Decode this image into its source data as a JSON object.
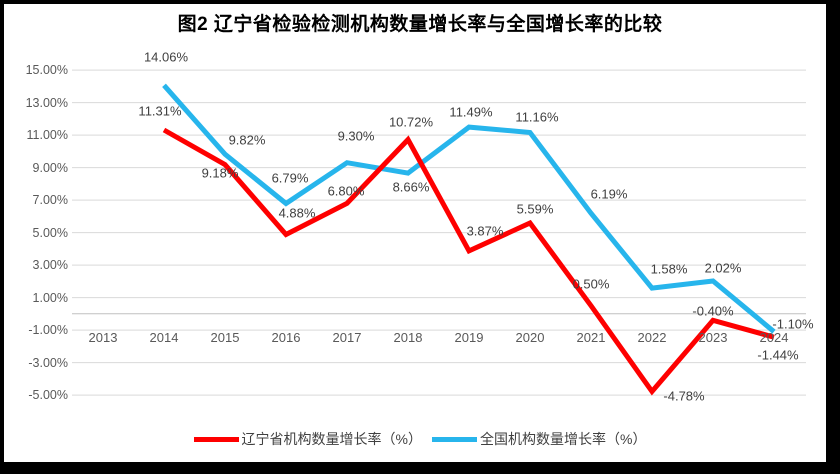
{
  "window": {
    "background": "#FFFFFF",
    "border_color": "#000000"
  },
  "chart_data": {
    "type": "line",
    "title": "图2 辽宁省检验检测机构数量增长率与全国增长率的比较",
    "categories": [
      "2013",
      "2014",
      "2015",
      "2016",
      "2017",
      "2018",
      "2019",
      "2020",
      "2021",
      "2022",
      "2023",
      "2024"
    ],
    "series": [
      {
        "key": "liaoning",
        "name": "辽宁省机构数量增长率（%）",
        "color": "#FE0000",
        "values": [
          null,
          11.31,
          9.18,
          4.88,
          6.8,
          10.72,
          3.87,
          5.59,
          0.5,
          -4.78,
          -0.4,
          -1.44
        ],
        "labels": [
          null,
          "11.31%",
          "9.18%",
          "4.88%",
          "6.80%",
          "10.72%",
          "3.87%",
          "5.59%",
          "0.50%",
          "-4.78%",
          "-0.40%",
          "-1.44%"
        ]
      },
      {
        "key": "national",
        "name": "全国机构数量增长率（%）",
        "color": "#27B5EC",
        "values": [
          null,
          14.06,
          9.82,
          6.79,
          9.3,
          8.66,
          11.49,
          11.16,
          6.19,
          1.58,
          2.02,
          -1.1
        ],
        "labels": [
          null,
          "14.06%",
          "9.82%",
          "6.79%",
          "9.30%",
          "8.66%",
          "11.49%",
          "11.16%",
          "6.19%",
          "1.58%",
          "2.02%",
          "-1.10%"
        ]
      }
    ],
    "y_axis": {
      "min": -5,
      "max": 15,
      "step": 2,
      "tick_labels": [
        "15.00%",
        "13.00%",
        "11.00%",
        "9.00%",
        "7.00%",
        "5.00%",
        "3.00%",
        "1.00%",
        "-1.00%",
        "-3.00%",
        "-5.00%"
      ]
    },
    "grid": true,
    "legend_position": "bottom",
    "gridline_color": "#D9D9D9",
    "axis_line_color": "#C0C0C0",
    "axis_label_color": "#595959",
    "data_label_color": "#404040"
  }
}
